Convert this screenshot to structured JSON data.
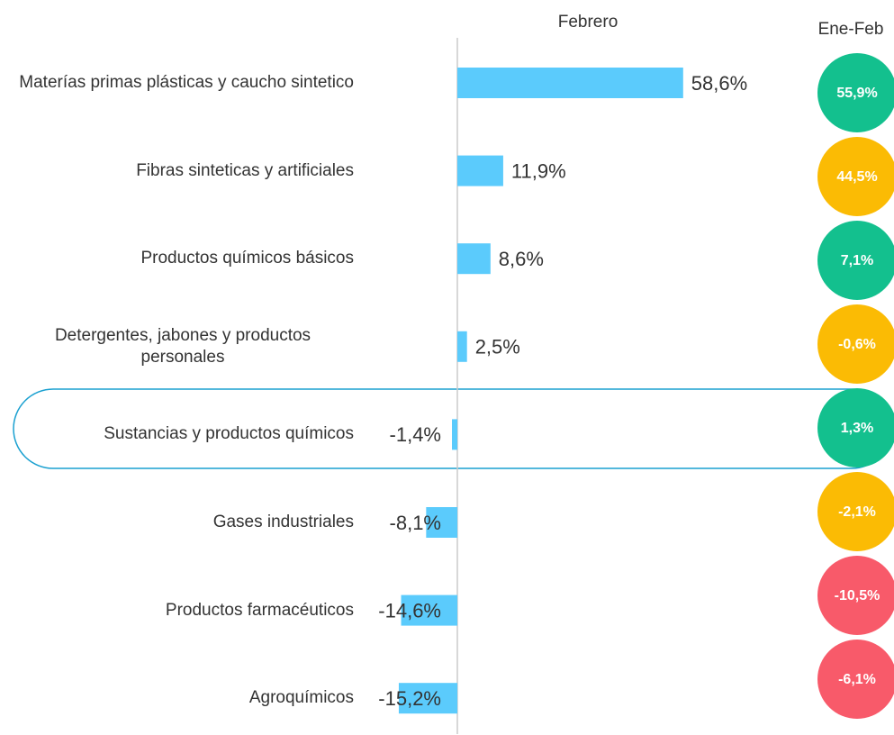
{
  "chart_data": {
    "type": "bar",
    "categories": [
      "Materías primas plásticas y caucho sintetico",
      "Fibras sinteticas y artificiales",
      "Productos químicos básicos",
      "Detergentes, jabones y productos personales",
      "Sustancias y productos químicos",
      "Gases industriales",
      "Productos farmacéuticos",
      "Agroquímicos"
    ],
    "series": [
      {
        "name": "Febrero",
        "color": "#5bcbfc",
        "values": [
          58.6,
          11.9,
          8.6,
          2.5,
          -1.4,
          -8.1,
          -14.6,
          -15.2
        ],
        "value_labels": [
          "58,6%",
          "11,9%",
          "8,6%",
          "2,5%",
          "-1,4%",
          "-8,1%",
          "-14,6%",
          "-15,2%"
        ]
      },
      {
        "name": "Ene-Feb",
        "colors": [
          "#13c08e",
          "#fbbb04",
          "#13c08e",
          "#fbbb04",
          "#13c08e",
          "#fbbb04",
          "#f85a6a",
          "#f85a6a"
        ],
        "values": [
          55.9,
          44.5,
          7.1,
          -0.6,
          1.3,
          -2.1,
          -10.5,
          -6.1
        ],
        "value_labels": [
          "55,9%",
          "44,5%",
          "7,1%",
          "-0,6%",
          "1,3%",
          "-2,1%",
          "-10,5%",
          "-6,1%"
        ]
      }
    ]
  }
}
